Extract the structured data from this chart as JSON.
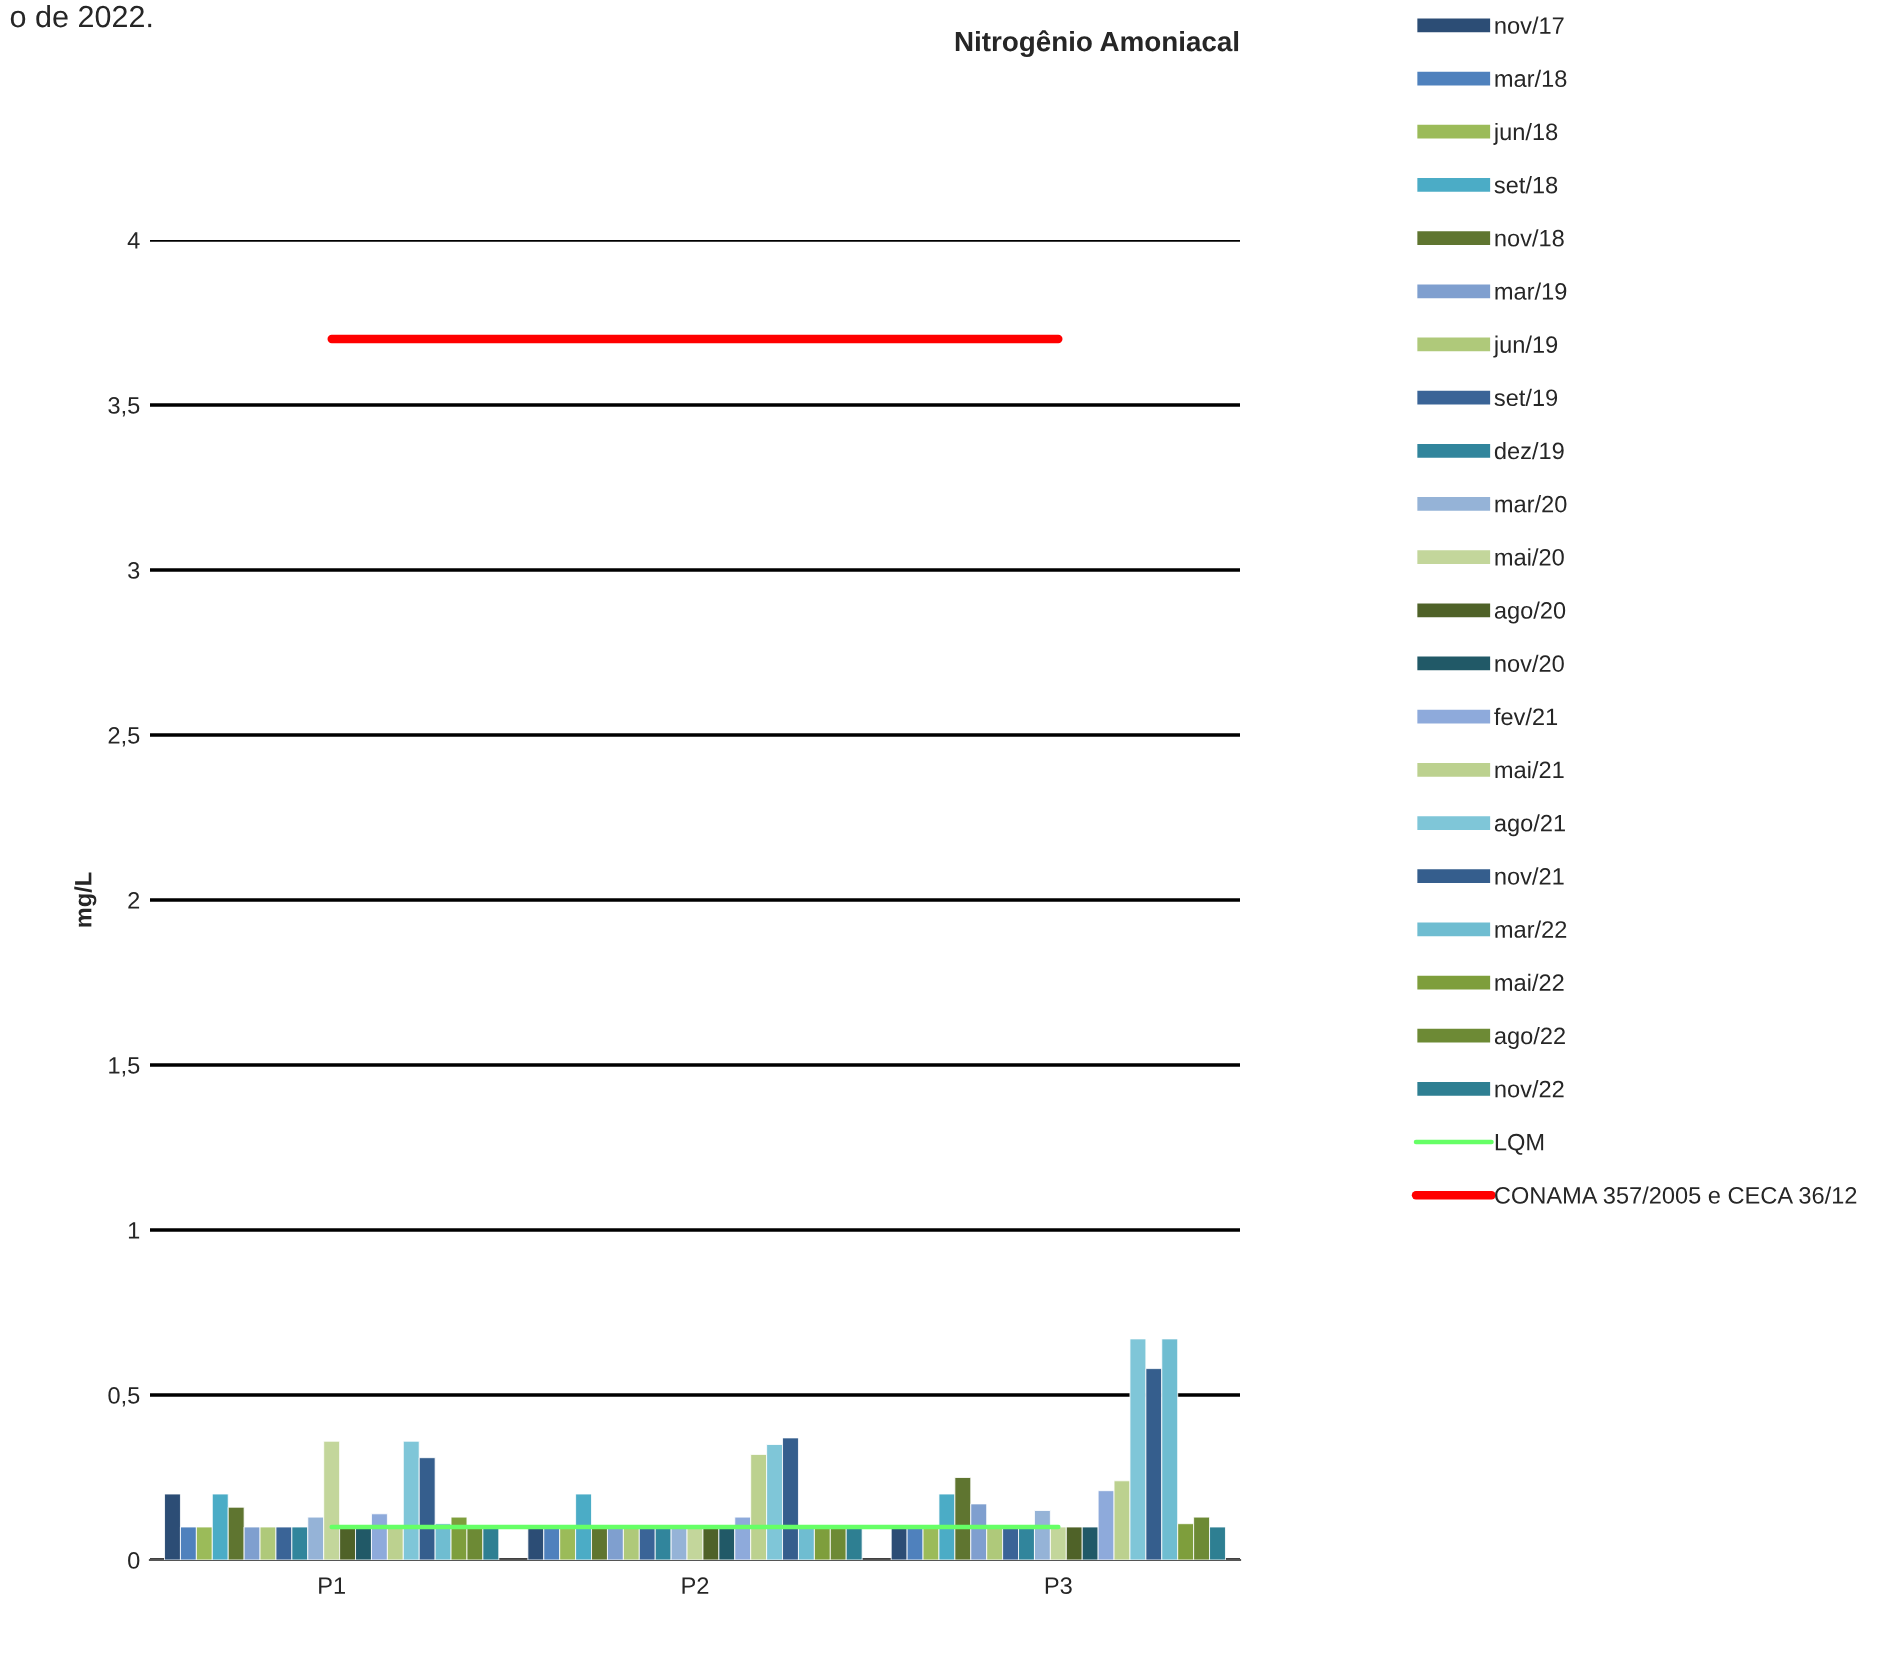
{
  "chart_data": {
    "type": "bar",
    "title": "Nitrogênio Amoniacal",
    "ylabel": "mg/L",
    "annotations": [
      "o de 2022."
    ],
    "categories": [
      "P1",
      "P2",
      "P3"
    ],
    "series": [
      {
        "name": "nov/17",
        "color": "#2c4d75",
        "values": [
          0.2,
          0.1,
          0.1
        ]
      },
      {
        "name": "mar/18",
        "color": "#4f81bd",
        "values": [
          0.1,
          0.1,
          0.1
        ]
      },
      {
        "name": "jun/18",
        "color": "#9bbb59",
        "values": [
          0.1,
          0.1,
          0.1
        ]
      },
      {
        "name": "set/18",
        "color": "#4bacc6",
        "values": [
          0.2,
          0.2,
          0.2
        ]
      },
      {
        "name": "nov/18",
        "color": "#5f7530",
        "values": [
          0.16,
          0.1,
          0.25
        ]
      },
      {
        "name": "mar/19",
        "color": "#7f9fcf",
        "values": [
          0.1,
          0.1,
          0.17
        ]
      },
      {
        "name": "jun/19",
        "color": "#afc97a",
        "values": [
          0.1,
          0.1,
          0.1
        ]
      },
      {
        "name": "set/19",
        "color": "#3a6497",
        "values": [
          0.1,
          0.1,
          0.1
        ]
      },
      {
        "name": "dez/19",
        "color": "#31859c",
        "values": [
          0.1,
          0.1,
          0.1
        ]
      },
      {
        "name": "mar/20",
        "color": "#95b3d7",
        "values": [
          0.13,
          0.1,
          0.15
        ]
      },
      {
        "name": "mai/20",
        "color": "#c3d69b",
        "values": [
          0.36,
          0.1,
          0.1
        ]
      },
      {
        "name": "ago/20",
        "color": "#4f6228",
        "values": [
          0.1,
          0.1,
          0.1
        ]
      },
      {
        "name": "nov/20",
        "color": "#215967",
        "values": [
          0.1,
          0.1,
          0.1
        ]
      },
      {
        "name": "fev/21",
        "color": "#8eaadb",
        "values": [
          0.14,
          0.13,
          0.21
        ]
      },
      {
        "name": "mai/21",
        "color": "#bcd18f",
        "values": [
          0.1,
          0.32,
          0.24
        ]
      },
      {
        "name": "ago/21",
        "color": "#7fc6d8",
        "values": [
          0.36,
          0.35,
          0.67
        ]
      },
      {
        "name": "nov/21",
        "color": "#355e8d",
        "values": [
          0.31,
          0.37,
          0.58
        ]
      },
      {
        "name": "mar/22",
        "color": "#6fbdd1",
        "values": [
          0.11,
          0.1,
          0.67
        ]
      },
      {
        "name": "mai/22",
        "color": "#7e9e3c",
        "values": [
          0.13,
          0.1,
          0.11
        ]
      },
      {
        "name": "ago/22",
        "color": "#6d8a35",
        "values": [
          0.1,
          0.1,
          0.13
        ]
      },
      {
        "name": "nov/22",
        "color": "#2e7f92",
        "values": [
          0.1,
          0.1,
          0.1
        ]
      },
      {
        "name": "LQM",
        "type": "line",
        "color": "#66ff66",
        "values": [
          0.1,
          0.1,
          0.1
        ]
      },
      {
        "name": "CONAMA 357/2005 e CECA 36/12",
        "type": "line",
        "color": "#ff0000",
        "values": [
          3.7,
          3.7,
          3.7
        ]
      }
    ],
    "ylim": [
      0,
      4
    ],
    "yticks": [
      0,
      {
        "value": 0.5,
        "label": "0,5"
      },
      1,
      {
        "value": 1.5,
        "label": "1,5"
      },
      2,
      {
        "value": 2.5,
        "label": "2,5"
      },
      3,
      {
        "value": 3.5,
        "label": "3,5"
      },
      4
    ],
    "grid": "y",
    "legend": "right"
  }
}
